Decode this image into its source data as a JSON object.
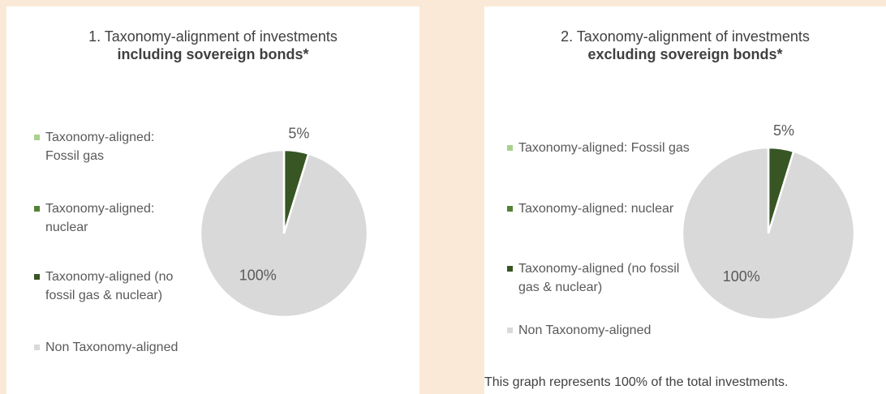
{
  "chart_data": [
    {
      "type": "pie",
      "title": "1. Taxonomy-alignment of investments",
      "subtitle": "including sovereign bonds*",
      "categories": [
        "Taxonomy-aligned: Fossil gas",
        "Taxonomy-aligned: nuclear",
        "Taxonomy-aligned (no fossil gas & nuclear)",
        "Non Taxonomy-aligned"
      ],
      "values": [
        0,
        0,
        5,
        100
      ],
      "value_labels": [
        null,
        null,
        "5%",
        "100%"
      ],
      "colors": [
        "#a9d18e",
        "#548235",
        "#375623",
        "#d9d9d9"
      ]
    },
    {
      "type": "pie",
      "title": "2. Taxonomy-alignment of investments",
      "subtitle": "excluding sovereign bonds*",
      "categories": [
        "Taxonomy-aligned: Fossil gas",
        "Taxonomy-aligned: nuclear",
        "Taxonomy-aligned (no fossil gas & nuclear)",
        "Non Taxonomy-aligned"
      ],
      "values": [
        0,
        0,
        5,
        100
      ],
      "value_labels": [
        null,
        null,
        "5%",
        "100%"
      ],
      "colors": [
        "#a9d18e",
        "#548235",
        "#375623",
        "#d9d9d9"
      ],
      "note": "This graph represents 100% of the total investments."
    }
  ]
}
